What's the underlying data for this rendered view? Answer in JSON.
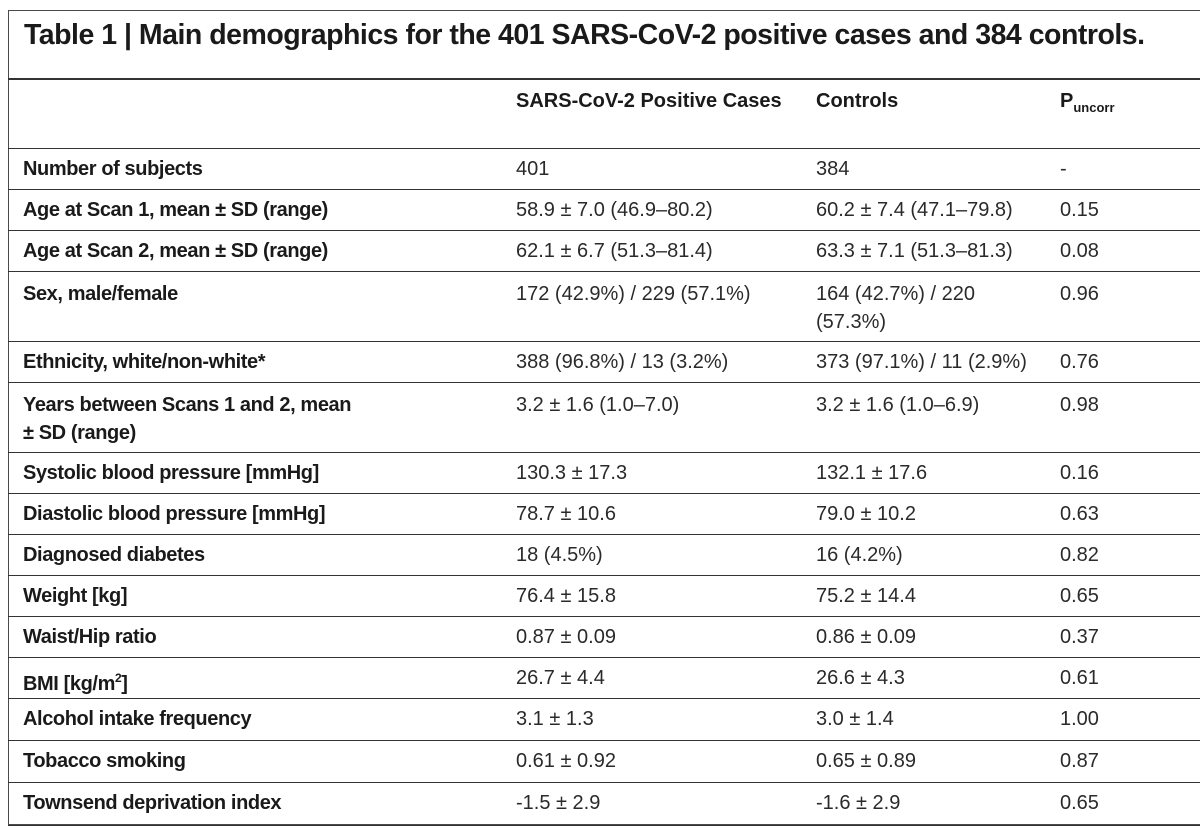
{
  "title": "Table 1 | Main demographics for the 401 SARS-CoV-2 positive cases and 384 controls.",
  "headers": {
    "col1": "SARS-CoV-2 Positive Cases",
    "col2": "Controls",
    "col3_main": "P",
    "col3_sub": "uncorr"
  },
  "rows": [
    {
      "label": "Number of subjects",
      "cases": "401",
      "controls": "384",
      "p": "-"
    },
    {
      "label": "Age at Scan 1, mean ± SD (range)",
      "cases": "58.9 ± 7.0 (46.9–80.2)",
      "controls": "60.2 ± 7.4 (47.1–79.8)",
      "p": "0.15"
    },
    {
      "label": "Age at Scan 2, mean ± SD (range)",
      "cases": "62.1 ± 6.7 (51.3–81.4)",
      "controls": "63.3 ± 7.1 (51.3–81.3)",
      "p": "0.08"
    },
    {
      "label": "Sex, male/female",
      "cases": "172 (42.9%) / 229 (57.1%)",
      "controls": "164 (42.7%) / 220 (57.3%)",
      "p": "0.96"
    },
    {
      "label": "Ethnicity, white/non-white*",
      "cases": "388 (96.8%) / 13 (3.2%)",
      "controls": "373 (97.1%) / 11 (2.9%)",
      "p": "0.76"
    },
    {
      "label": "Years between Scans 1 and 2, mean ± SD (range)",
      "cases": "3.2 ± 1.6 (1.0–7.0)",
      "controls": "3.2 ± 1.6 (1.0–6.9)",
      "p": "0.98"
    },
    {
      "label": "Systolic blood pressure [mmHg]",
      "cases": "130.3 ± 17.3",
      "controls": "132.1 ± 17.6",
      "p": "0.16"
    },
    {
      "label": "Diastolic blood pressure [mmHg]",
      "cases": "78.7 ± 10.6",
      "controls": "79.0 ± 10.2",
      "p": "0.63"
    },
    {
      "label": "Diagnosed diabetes",
      "cases": "18 (4.5%)",
      "controls": "16 (4.2%)",
      "p": "0.82"
    },
    {
      "label": "Weight [kg]",
      "cases": "76.4 ± 15.8",
      "controls": "75.2 ± 14.4",
      "p": "0.65"
    },
    {
      "label": "Waist/Hip ratio",
      "cases": "0.87 ± 0.09",
      "controls": "0.86 ± 0.09",
      "p": "0.37"
    },
    {
      "label": "BMI [kg/m",
      "label_sup": "2",
      "label_end": "]",
      "cases": "26.7 ± 4.4",
      "controls": "26.6 ± 4.3",
      "p": "0.61"
    },
    {
      "label": "Alcohol intake frequency",
      "cases": "3.1 ± 1.3",
      "controls": "3.0 ± 1.4",
      "p": "1.00"
    },
    {
      "label": "Tobacco smoking",
      "cases": "0.61 ± 0.92",
      "controls": "0.65 ± 0.89",
      "p": "0.87"
    },
    {
      "label": "Townsend deprivation index",
      "cases": "-1.5 ± 2.9",
      "controls": "-1.6 ± 2.9",
      "p": "0.65"
    }
  ]
}
